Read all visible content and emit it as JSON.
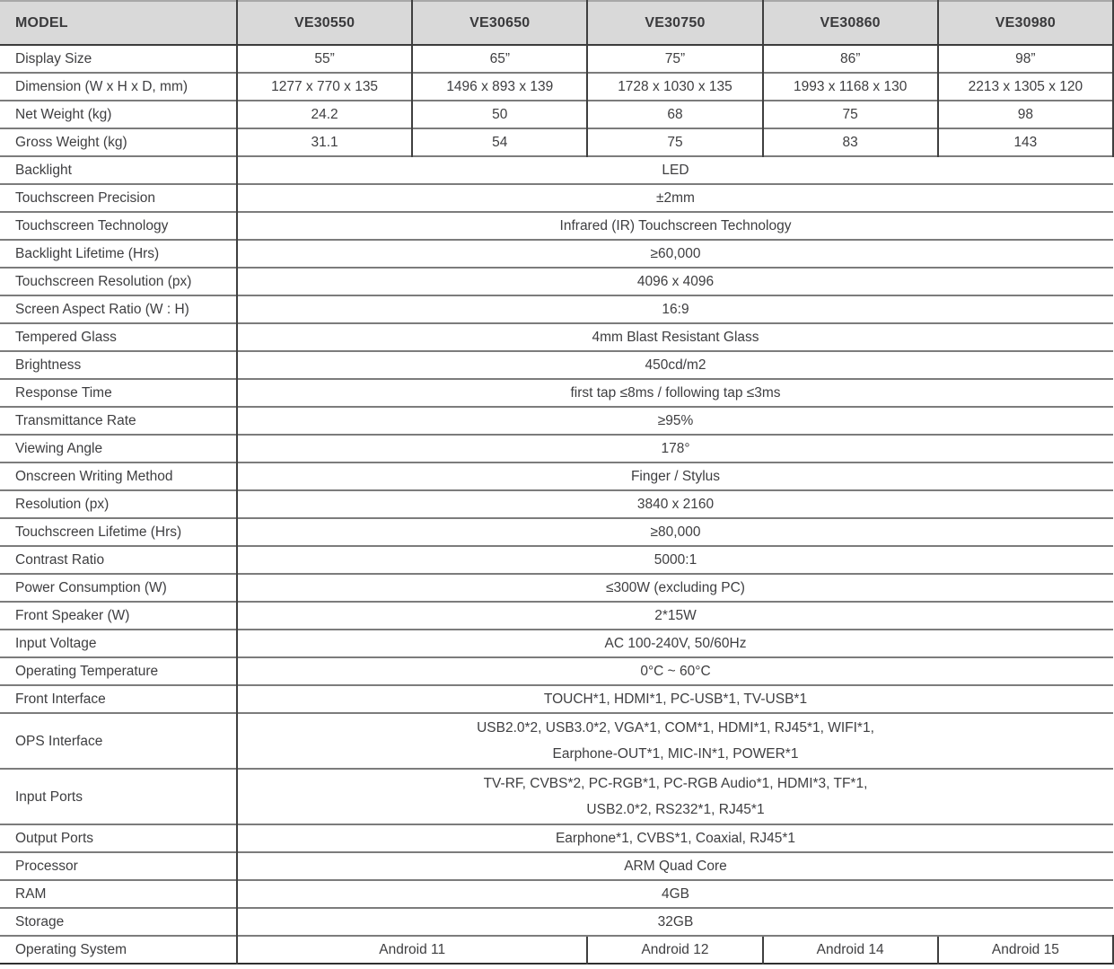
{
  "table": {
    "header": {
      "label": "MODEL",
      "models": [
        "VE30550",
        "VE30650",
        "VE30750",
        "VE30860",
        "VE30980"
      ]
    },
    "model_rows": [
      {
        "label": "Display Size",
        "values": [
          "55”",
          "65”",
          "75”",
          "86”",
          "98”"
        ]
      },
      {
        "label": "Dimension (W x H x D, mm)",
        "values": [
          "1277 x 770 x 135",
          "1496 x 893 x 139",
          "1728 x 1030 x 135",
          "1993 x 1168 x 130",
          "2213 x 1305 x 120"
        ]
      },
      {
        "label": "Net Weight (kg)",
        "values": [
          "24.2",
          "50",
          "68",
          "75",
          "98"
        ]
      },
      {
        "label": "Gross Weight (kg)",
        "values": [
          "31.1",
          "54",
          "75",
          "83",
          "143"
        ]
      }
    ],
    "spec_rows": [
      {
        "label": "Backlight",
        "value": "LED"
      },
      {
        "label": "Touchscreen Precision",
        "value": "±2mm"
      },
      {
        "label": "Touchscreen Technology",
        "value": "Infrared (IR) Touchscreen Technology"
      },
      {
        "label": "Backlight Lifetime (Hrs)",
        "value": "≥60,000"
      },
      {
        "label": "Touchscreen Resolution (px)",
        "value": "4096 x 4096"
      },
      {
        "label": "Screen Aspect Ratio (W : H)",
        "value": "16:9"
      },
      {
        "label": "Tempered Glass",
        "value": "4mm Blast Resistant Glass"
      },
      {
        "label": "Brightness",
        "value": "450cd/m2"
      },
      {
        "label": "Response Time",
        "value": "first tap ≤8ms / following tap ≤3ms"
      },
      {
        "label": "Transmittance Rate",
        "value": "≥95%"
      },
      {
        "label": "Viewing Angle",
        "value": "178°"
      },
      {
        "label": "Onscreen Writing Method",
        "value": "Finger / Stylus"
      },
      {
        "label": "Resolution (px)",
        "value": "3840 x 2160"
      },
      {
        "label": "Touchscreen Lifetime (Hrs)",
        "value": "≥80,000"
      },
      {
        "label": "Contrast Ratio",
        "value": "5000:1"
      },
      {
        "label": "Power Consumption (W)",
        "value": "≤300W (excluding PC)"
      },
      {
        "label": "Front Speaker (W)",
        "value": "2*15W"
      },
      {
        "label": "Input Voltage",
        "value": "AC 100-240V, 50/60Hz"
      },
      {
        "label": "Operating Temperature",
        "value": "0°C ~ 60°C"
      },
      {
        "label": "Front Interface",
        "value": "TOUCH*1, HDMI*1, PC-USB*1, TV-USB*1"
      },
      {
        "label": "OPS Interface",
        "value": "USB2.0*2, USB3.0*2, VGA*1, COM*1, HDMI*1, RJ45*1, WIFI*1,\nEarphone-OUT*1, MIC-IN*1, POWER*1"
      },
      {
        "label": "Input Ports",
        "value": "TV-RF, CVBS*2, PC-RGB*1, PC-RGB Audio*1, HDMI*3, TF*1,\nUSB2.0*2, RS232*1, RJ45*1"
      },
      {
        "label": "Output Ports",
        "value": "Earphone*1, CVBS*1, Coaxial, RJ45*1"
      },
      {
        "label": "Processor",
        "value": "ARM Quad Core"
      },
      {
        "label": "RAM",
        "value": "4GB"
      },
      {
        "label": "Storage",
        "value": "32GB"
      }
    ],
    "os_row": {
      "label": "Operating System",
      "cells": [
        "Android 11",
        "Android 12",
        "Android 14",
        "Android 15"
      ]
    }
  }
}
